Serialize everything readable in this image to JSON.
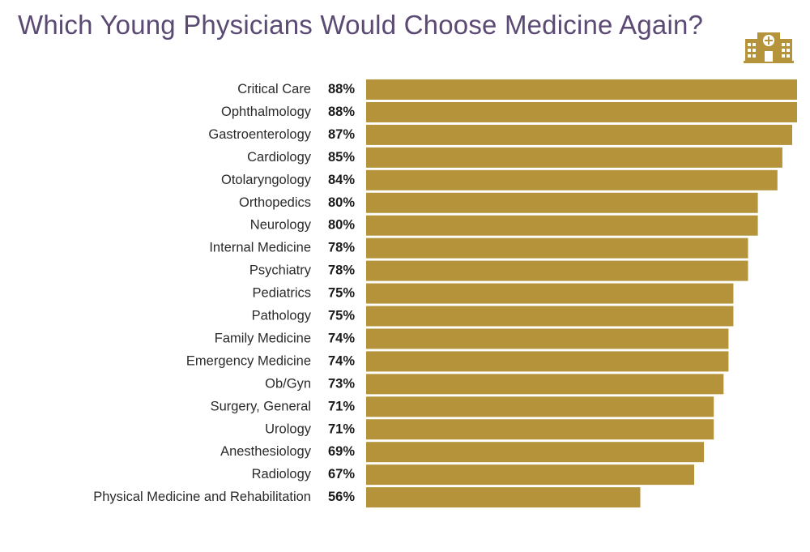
{
  "title": "Which Young Physicians Would Choose Medicine Again?",
  "icon": "hospital-icon",
  "colors": {
    "bar": "#b4933a",
    "title": "#5b4a73",
    "icon": "#b4933a"
  },
  "chart_data": {
    "type": "bar",
    "orientation": "horizontal",
    "title": "Which Young Physicians Would Choose Medicine Again?",
    "xlabel": "",
    "ylabel": "",
    "xlim": [
      0,
      88
    ],
    "grid": false,
    "legend": "none",
    "categories": [
      "Critical Care",
      "Ophthalmology",
      "Gastroenterology",
      "Cardiology",
      "Otolaryngology",
      "Orthopedics",
      "Neurology",
      "Internal Medicine",
      "Psychiatry",
      "Pediatrics",
      "Pathology",
      "Family Medicine",
      "Emergency Medicine",
      "Ob/Gyn",
      "Surgery, General",
      "Urology",
      "Anesthesiology",
      "Radiology",
      "Physical Medicine and Rehabilitation"
    ],
    "values": [
      88,
      88,
      87,
      85,
      84,
      80,
      80,
      78,
      78,
      75,
      75,
      74,
      74,
      73,
      71,
      71,
      69,
      67,
      56
    ],
    "value_labels": [
      "88%",
      "88%",
      "87%",
      "85%",
      "84%",
      "80%",
      "80%",
      "78%",
      "78%",
      "75%",
      "75%",
      "74%",
      "74%",
      "73%",
      "71%",
      "71%",
      "69%",
      "67%",
      "56%"
    ]
  }
}
